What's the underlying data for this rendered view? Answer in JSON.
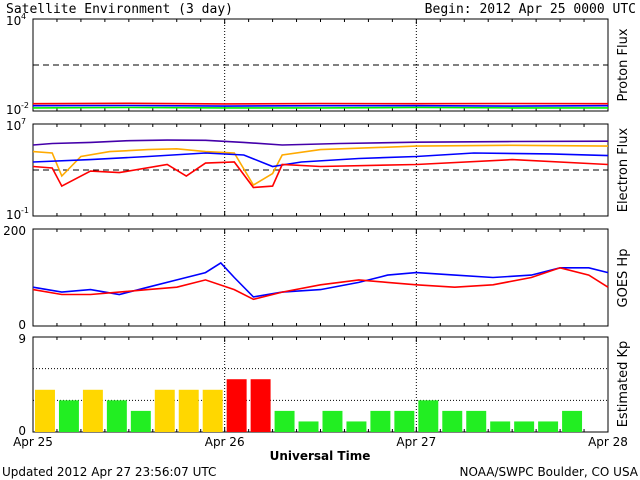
{
  "header": {
    "title": "Satellite Environment (3 day)",
    "begin": "Begin:  2012 Apr 25 0000 UTC"
  },
  "footer": {
    "updated": "Updated 2012 Apr 27 23:56:07 UTC",
    "credit": "NOAA/SWPC Boulder, CO USA",
    "xaxis_title": "Universal Time"
  },
  "x_ticks": [
    "Apr 25",
    "Apr 26",
    "Apr 27",
    "Apr 28"
  ],
  "colors": {
    "red": "#ff0000",
    "blue": "#0000ff",
    "green": "#00ee00",
    "orange": "#ffaa00",
    "purple": "#4400aa",
    "kp_low": "#22ee22",
    "kp_mid": "#ffd700",
    "kp_high": "#ff0000"
  },
  "chart_data": [
    {
      "type": "line",
      "panel": "proton",
      "ylabel": "Proton Flux",
      "yscale": "log",
      "ylim": [
        0.01,
        10000
      ],
      "ytick_labels": [
        {
          "base": "10",
          "exp": "4"
        },
        {
          "base": "10",
          "exp": "-2"
        }
      ],
      "threshold": 10,
      "series": [
        {
          "color": "red",
          "x": [
            0,
            0.5,
            1,
            1.5,
            2,
            2.5,
            3
          ],
          "y": [
            0.03,
            0.032,
            0.029,
            0.031,
            0.03,
            0.031,
            0.03
          ]
        },
        {
          "color": "blue",
          "x": [
            0,
            0.5,
            1,
            1.5,
            2,
            2.5,
            3
          ],
          "y": [
            0.022,
            0.023,
            0.021,
            0.022,
            0.022,
            0.021,
            0.022
          ]
        },
        {
          "color": "green",
          "x": [
            0,
            0.5,
            1,
            1.5,
            2,
            2.5,
            3
          ],
          "y": [
            0.016,
            0.017,
            0.016,
            0.016,
            0.017,
            0.016,
            0.016
          ]
        }
      ]
    },
    {
      "type": "line",
      "panel": "electron",
      "ylabel": "Electron Flux",
      "yscale": "log",
      "ylim": [
        0.1,
        10000000
      ],
      "ytick_labels": [
        {
          "base": "10",
          "exp": "7"
        },
        {
          "base": "10",
          "exp": "-1"
        }
      ],
      "threshold": 1000,
      "series": [
        {
          "color": "purple",
          "x": [
            0,
            0.1,
            0.3,
            0.5,
            0.7,
            0.9,
            1.1,
            1.3,
            1.6,
            2.0,
            2.5,
            3.0
          ],
          "y": [
            150000,
            200000,
            250000,
            350000,
            400000,
            380000,
            250000,
            150000,
            200000,
            260000,
            300000,
            320000
          ]
        },
        {
          "color": "orange",
          "x": [
            0,
            0.1,
            0.15,
            0.25,
            0.4,
            0.6,
            0.75,
            0.9,
            1.05,
            1.15,
            1.25,
            1.3,
            1.5,
            2.0,
            2.5,
            3.0
          ],
          "y": [
            40000,
            30000,
            300,
            15000,
            40000,
            60000,
            70000,
            40000,
            30000,
            50,
            500,
            20000,
            60000,
            120000,
            140000,
            120000
          ]
        },
        {
          "color": "blue",
          "x": [
            0,
            0.3,
            0.6,
            0.9,
            1.1,
            1.25,
            1.4,
            1.7,
            2.0,
            2.3,
            2.7,
            3.0
          ],
          "y": [
            5000,
            8000,
            15000,
            30000,
            20000,
            2000,
            5000,
            10000,
            15000,
            30000,
            25000,
            18000
          ]
        },
        {
          "color": "red",
          "x": [
            0,
            0.1,
            0.15,
            0.3,
            0.45,
            0.7,
            0.8,
            0.9,
            1.05,
            1.15,
            1.25,
            1.3,
            1.5,
            2.0,
            2.5,
            3.0
          ],
          "y": [
            2000,
            1500,
            40,
            800,
            600,
            3000,
            300,
            4000,
            5000,
            30,
            40,
            3000,
            2000,
            3000,
            8000,
            3000
          ]
        }
      ]
    },
    {
      "type": "line",
      "panel": "hp",
      "ylabel": "GOES Hp",
      "ylim": [
        0,
        200
      ],
      "ytick_labels": [
        "200",
        "0"
      ],
      "series": [
        {
          "color": "blue",
          "x": [
            0,
            0.15,
            0.3,
            0.45,
            0.6,
            0.75,
            0.9,
            0.98,
            1.05,
            1.15,
            1.3,
            1.5,
            1.7,
            1.85,
            2.0,
            2.2,
            2.4,
            2.6,
            2.75,
            2.9,
            3.0
          ],
          "y": [
            80,
            70,
            75,
            65,
            80,
            95,
            110,
            130,
            100,
            60,
            70,
            75,
            90,
            105,
            110,
            105,
            100,
            105,
            120,
            120,
            110
          ]
        },
        {
          "color": "red",
          "x": [
            0,
            0.15,
            0.3,
            0.45,
            0.6,
            0.75,
            0.9,
            1.05,
            1.15,
            1.3,
            1.5,
            1.7,
            1.85,
            2.0,
            2.2,
            2.4,
            2.6,
            2.75,
            2.9,
            3.0
          ],
          "y": [
            75,
            65,
            65,
            70,
            75,
            80,
            95,
            75,
            55,
            70,
            85,
            95,
            90,
            85,
            80,
            85,
            100,
            120,
            105,
            80
          ]
        }
      ]
    },
    {
      "type": "bar",
      "panel": "kp",
      "ylabel": "Estimated Kp",
      "ylim": [
        0,
        9
      ],
      "ytick_labels": [
        "9",
        "0"
      ],
      "gridlines": [
        3,
        6,
        9
      ],
      "values": [
        4,
        3,
        4,
        3,
        2,
        4,
        4,
        4,
        5,
        5,
        2,
        1,
        2,
        1,
        2,
        2,
        3,
        2,
        2,
        1,
        1,
        1,
        2,
        0
      ]
    }
  ]
}
